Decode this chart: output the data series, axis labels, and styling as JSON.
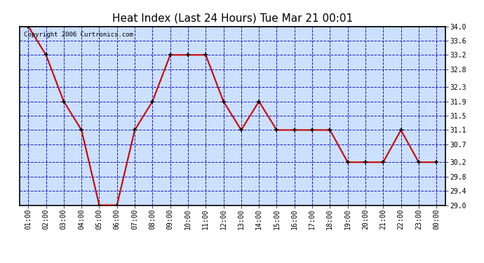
{
  "title": "Heat Index (Last 24 Hours) Tue Mar 21 00:01",
  "copyright": "Copyright 2006 Curtronics.com",
  "x_labels": [
    "01:00",
    "02:00",
    "03:00",
    "04:00",
    "05:00",
    "06:00",
    "07:00",
    "08:00",
    "09:00",
    "10:00",
    "11:00",
    "12:00",
    "13:00",
    "14:00",
    "15:00",
    "16:00",
    "17:00",
    "18:00",
    "19:00",
    "20:00",
    "21:00",
    "22:00",
    "23:00",
    "00:00"
  ],
  "y_values": [
    34.0,
    33.2,
    31.9,
    31.1,
    29.0,
    29.0,
    31.1,
    31.9,
    33.2,
    33.2,
    33.2,
    31.9,
    31.1,
    31.9,
    31.1,
    31.1,
    31.1,
    31.1,
    30.2,
    30.2,
    30.2,
    31.1,
    30.2,
    30.2
  ],
  "ylim_min": 29.0,
  "ylim_max": 34.0,
  "yticks": [
    29.0,
    29.4,
    29.8,
    30.2,
    30.7,
    31.1,
    31.5,
    31.9,
    32.3,
    32.8,
    33.2,
    33.6,
    34.0
  ],
  "line_color": "#cc0000",
  "marker_color": "#000000",
  "bg_color": "#ffffff",
  "plot_bg_color": "#cce0ff",
  "grid_color": "#0000bb",
  "title_color": "#000000",
  "title_fontsize": 11,
  "axis_label_fontsize": 7,
  "copyright_fontsize": 6.5
}
